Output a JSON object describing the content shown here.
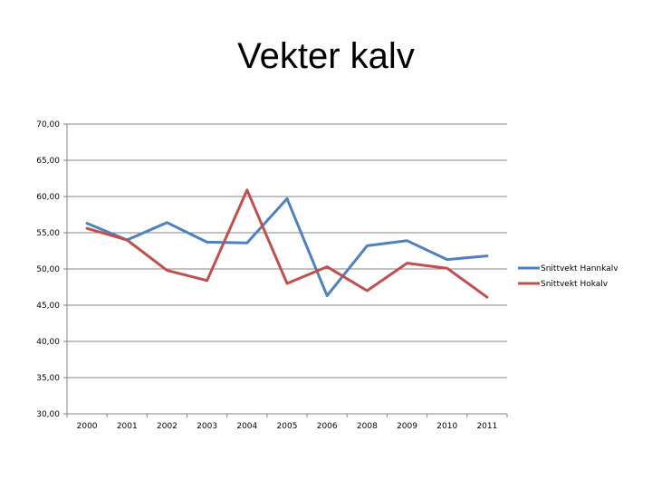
{
  "chart_data": {
    "type": "line",
    "title": "Vekter kalv",
    "xlabel": "",
    "ylabel": "",
    "categories": [
      "2000",
      "2001",
      "2002",
      "2003",
      "2004",
      "2005",
      "2006",
      "2008",
      "2009",
      "2010",
      "2011"
    ],
    "series": [
      {
        "name": "Snittvekt Hannkalv",
        "color": "#4f81bd",
        "values": [
          56.3,
          54.0,
          56.4,
          53.7,
          53.6,
          59.7,
          46.3,
          53.2,
          53.9,
          51.3,
          51.8
        ]
      },
      {
        "name": "Snittvekt Hokalv",
        "color": "#c0504d",
        "values": [
          55.6,
          54.0,
          49.8,
          48.4,
          60.9,
          48.0,
          50.3,
          47.0,
          50.8,
          50.1,
          46.1
        ]
      }
    ],
    "ylim": [
      30,
      70
    ],
    "yticks": [
      "30,00",
      "35,00",
      "40,00",
      "45,00",
      "50,00",
      "55,00",
      "60,00",
      "65,00",
      "70,00"
    ],
    "grid": true,
    "legend": "right"
  }
}
